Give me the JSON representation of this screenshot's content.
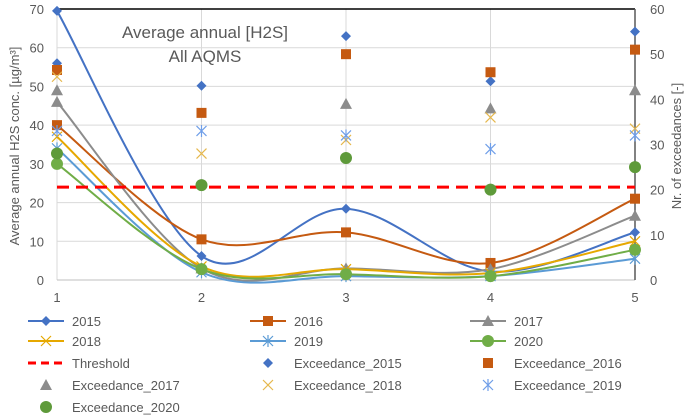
{
  "chart_data": {
    "type": "line",
    "title": "Average annual [H2S]",
    "subtitle": "All AQMS",
    "ylabel": "Average  annual H2S conc. [µg/m³]",
    "y2label": "Nr. of exceedances [-]",
    "x": [
      1,
      2,
      3,
      4,
      5
    ],
    "xticks": [
      "1",
      "2",
      "3",
      "4",
      "5"
    ],
    "ylim": [
      0,
      70
    ],
    "yticks": [
      "0",
      "10",
      "20",
      "30",
      "40",
      "50",
      "60",
      "70"
    ],
    "y2lim": [
      0,
      60
    ],
    "y2ticks": [
      "0",
      "10",
      "20",
      "30",
      "40",
      "50",
      "60"
    ],
    "grid": true,
    "legend_placement": "bottom",
    "series": [
      {
        "name": "2015",
        "color": "#4472c4",
        "marker": "diamond",
        "axis": "left",
        "values": [
          69.5,
          6.2,
          18.4,
          2.2,
          12.3
        ]
      },
      {
        "name": "2016",
        "color": "#c55a11",
        "marker": "square",
        "axis": "left",
        "values": [
          40,
          10.5,
          12.3,
          4.4,
          21
        ]
      },
      {
        "name": "2017",
        "color": "#8c8c8c",
        "marker": "triangle",
        "axis": "left",
        "values": [
          46,
          3,
          3,
          2.8,
          16.6
        ]
      },
      {
        "name": "2018",
        "color": "#e6a800",
        "marker": "x",
        "axis": "left",
        "values": [
          37,
          3.5,
          2.8,
          1.8,
          10
        ]
      },
      {
        "name": "2019",
        "color": "#5b9bd5",
        "marker": "asterisk",
        "axis": "left",
        "values": [
          34,
          2,
          1,
          1,
          5.5
        ]
      },
      {
        "name": "2020",
        "color": "#70ad47",
        "marker": "circle",
        "axis": "left",
        "values": [
          30,
          2.8,
          1.5,
          1,
          7.8
        ]
      },
      {
        "name": "Threshold",
        "color": "#ff0000",
        "marker": "none",
        "axis": "left",
        "dashed": true,
        "values": [
          24,
          24,
          24,
          24,
          24
        ]
      },
      {
        "name": "Exceedance_2015",
        "color": "#4472c4",
        "marker": "diamond",
        "axis": "right",
        "scatter": true,
        "values": [
          48,
          43,
          54,
          44,
          55
        ]
      },
      {
        "name": "Exceedance_2016",
        "color": "#c55a11",
        "marker": "square",
        "axis": "right",
        "scatter": true,
        "values": [
          46.5,
          37,
          50,
          46,
          51
        ]
      },
      {
        "name": "Exceedance_2017",
        "color": "#8c8c8c",
        "marker": "triangle",
        "axis": "right",
        "scatter": true,
        "values": [
          42,
          null,
          39,
          38,
          42
        ]
      },
      {
        "name": "Exceedance_2018",
        "color": "#e6b84d",
        "marker": "x",
        "axis": "right",
        "scatter": true,
        "values": [
          45,
          28,
          31,
          36,
          33.5
        ]
      },
      {
        "name": "Exceedance_2019",
        "color": "#6f9ee8",
        "marker": "asterisk",
        "axis": "right",
        "scatter": true,
        "values": [
          33,
          33,
          32,
          29,
          32
        ]
      },
      {
        "name": "Exceedance_2020",
        "color": "#5e9a3a",
        "marker": "circle",
        "axis": "right",
        "scatter": true,
        "values": [
          28,
          21,
          27,
          20,
          25
        ]
      }
    ]
  }
}
